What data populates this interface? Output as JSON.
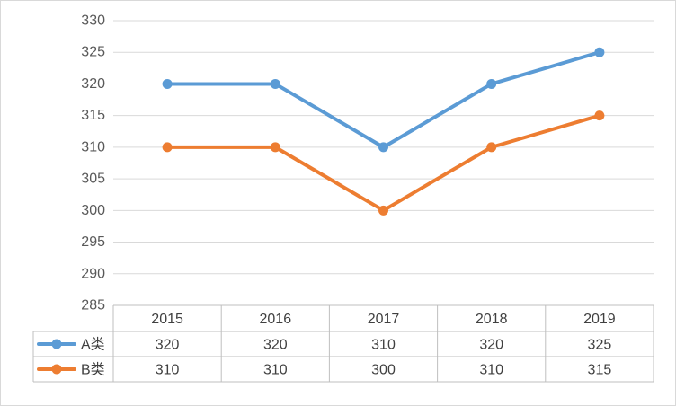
{
  "chart_data": {
    "type": "line",
    "title": "",
    "xlabel": "",
    "ylabel": "",
    "categories": [
      "2015",
      "2016",
      "2017",
      "2018",
      "2019"
    ],
    "ylim": [
      285,
      330
    ],
    "ytick_step": 5,
    "grid": true,
    "legend_placement": "data-table",
    "series": [
      {
        "name": "A类",
        "color": "#5b9bd5",
        "values": [
          320,
          320,
          310,
          320,
          325
        ]
      },
      {
        "name": "B类",
        "color": "#ed7d31",
        "values": [
          310,
          310,
          300,
          310,
          315
        ]
      }
    ]
  }
}
